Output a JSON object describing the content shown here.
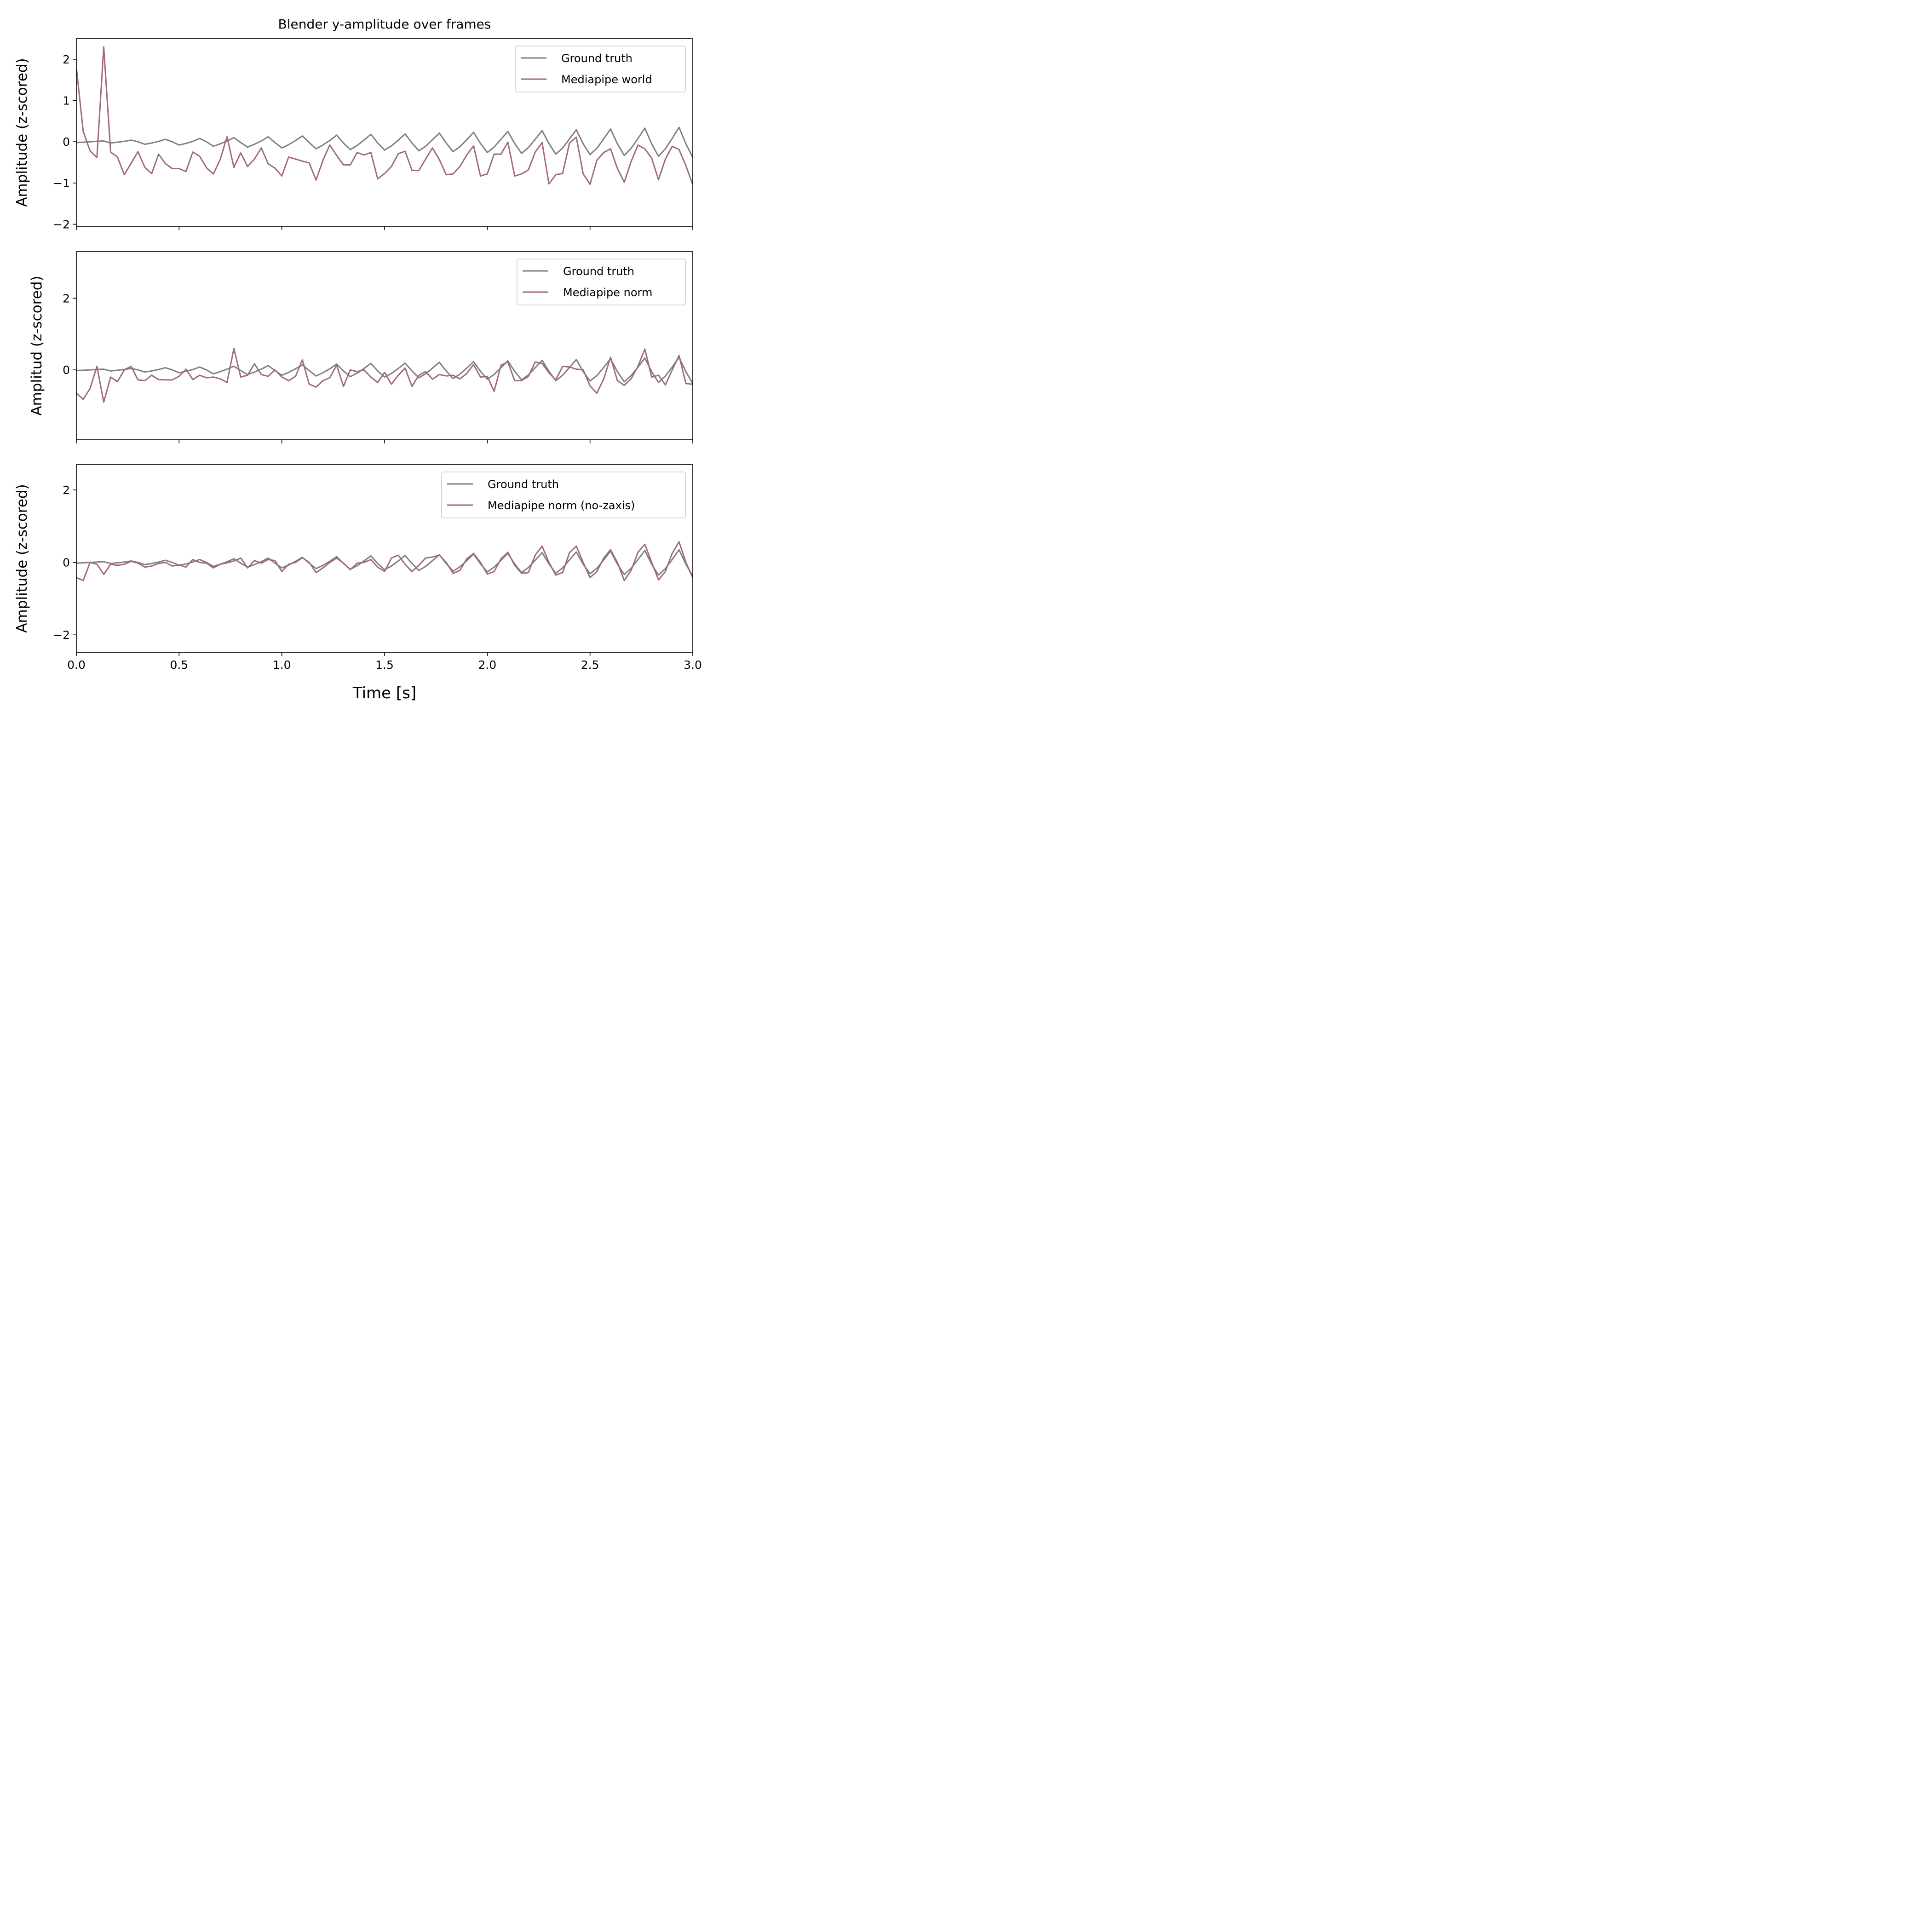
{
  "chart_data": [
    {
      "type": "line",
      "title": "Blender y-amplitude over frames",
      "xlabel": "",
      "ylabel": "Amplitude (z-scored)",
      "xlim": [
        0,
        3
      ],
      "ylim": [
        -2.05,
        2.5
      ],
      "yticks": [
        -2,
        -1,
        0,
        1,
        2
      ],
      "ytick_labels": [
        "−2",
        "−1",
        "0",
        "1",
        "2"
      ],
      "xticks": [
        0,
        0.5,
        1.0,
        1.5,
        2.0,
        2.5,
        3.0
      ],
      "xtick_labels": [],
      "legend_position": "top-right",
      "x": [
        0.0,
        0.0333,
        0.0667,
        0.1,
        0.1333,
        0.1667,
        0.2,
        0.2333,
        0.2667,
        0.3,
        0.3333,
        0.3667,
        0.4,
        0.4333,
        0.4667,
        0.5,
        0.5333,
        0.5667,
        0.6,
        0.6333,
        0.6667,
        0.7,
        0.7333,
        0.7667,
        0.8,
        0.8333,
        0.8667,
        0.9,
        0.9333,
        0.9667,
        1.0,
        1.0333,
        1.0667,
        1.1,
        1.1333,
        1.1667,
        1.2,
        1.2333,
        1.2667,
        1.3,
        1.3333,
        1.3667,
        1.4,
        1.4333,
        1.4667,
        1.5,
        1.5333,
        1.5667,
        1.6,
        1.6333,
        1.6667,
        1.7,
        1.7333,
        1.7667,
        1.8,
        1.8333,
        1.8667,
        1.9,
        1.9333,
        1.9667,
        2.0,
        2.0333,
        2.0667,
        2.1,
        2.1333,
        2.1667,
        2.2,
        2.2333,
        2.2667,
        2.3,
        2.3333,
        2.3667,
        2.4,
        2.4333,
        2.4667,
        2.5,
        2.5333,
        2.5667,
        2.6,
        2.6333,
        2.6667,
        2.7,
        2.7333,
        2.7667,
        2.8,
        2.8333,
        2.8667,
        2.9,
        2.9333,
        2.9667,
        3.0
      ],
      "series": [
        {
          "name": "Ground truth",
          "color": "#808080",
          "values": [
            -0.02,
            -0.01,
            0.0,
            0.01,
            0.02,
            -0.03,
            -0.01,
            0.01,
            0.04,
            0.0,
            -0.06,
            -0.03,
            0.01,
            0.06,
            0.0,
            -0.08,
            -0.04,
            0.01,
            0.08,
            0.0,
            -0.11,
            -0.05,
            0.02,
            0.1,
            -0.02,
            -0.13,
            -0.06,
            0.02,
            0.12,
            -0.02,
            -0.15,
            -0.07,
            0.03,
            0.14,
            -0.02,
            -0.17,
            -0.08,
            0.03,
            0.16,
            -0.03,
            -0.19,
            -0.09,
            0.04,
            0.18,
            -0.03,
            -0.2,
            -0.1,
            0.04,
            0.19,
            -0.03,
            -0.22,
            -0.11,
            0.05,
            0.21,
            -0.03,
            -0.24,
            -0.12,
            0.05,
            0.23,
            -0.04,
            -0.26,
            -0.13,
            0.06,
            0.25,
            -0.04,
            -0.28,
            -0.14,
            0.06,
            0.27,
            -0.04,
            -0.3,
            -0.15,
            0.07,
            0.29,
            -0.05,
            -0.31,
            -0.16,
            0.07,
            0.31,
            -0.05,
            -0.33,
            -0.16,
            0.08,
            0.33,
            -0.05,
            -0.35,
            -0.17,
            0.08,
            0.35,
            -0.05,
            -0.38
          ]
        },
        {
          "name": "Mediapipe world",
          "color": "#a06a80",
          "values": [
            1.8,
            0.25,
            -0.22,
            -0.38,
            2.3,
            -0.25,
            -0.37,
            -0.8,
            -0.52,
            -0.24,
            -0.62,
            -0.77,
            -0.3,
            -0.53,
            -0.65,
            -0.65,
            -0.72,
            -0.25,
            -0.35,
            -0.63,
            -0.78,
            -0.43,
            0.12,
            -0.62,
            -0.27,
            -0.6,
            -0.42,
            -0.15,
            -0.53,
            -0.64,
            -0.83,
            -0.37,
            -0.42,
            -0.47,
            -0.51,
            -0.93,
            -0.45,
            -0.08,
            -0.33,
            -0.56,
            -0.56,
            -0.26,
            -0.32,
            -0.26,
            -0.9,
            -0.77,
            -0.6,
            -0.29,
            -0.23,
            -0.69,
            -0.7,
            -0.42,
            -0.15,
            -0.43,
            -0.8,
            -0.78,
            -0.6,
            -0.32,
            -0.1,
            -0.83,
            -0.78,
            -0.3,
            -0.3,
            -0.01,
            -0.83,
            -0.78,
            -0.68,
            -0.25,
            -0.02,
            -1.02,
            -0.8,
            -0.77,
            -0.03,
            0.11,
            -0.78,
            -1.03,
            -0.45,
            -0.26,
            -0.17,
            -0.65,
            -0.98,
            -0.48,
            -0.08,
            -0.17,
            -0.4,
            -0.92,
            -0.42,
            -0.11,
            -0.19,
            -0.58,
            -1.04
          ]
        }
      ]
    },
    {
      "type": "line",
      "title": "",
      "xlabel": "",
      "ylabel": "Amplitud (z-scored)",
      "xlim": [
        0,
        3
      ],
      "ylim": [
        -1.95,
        3.3
      ],
      "yticks": [
        0,
        2
      ],
      "ytick_labels": [
        "0",
        "2"
      ],
      "xticks": [
        0,
        0.5,
        1.0,
        1.5,
        2.0,
        2.5,
        3.0
      ],
      "xtick_labels": [],
      "legend_position": "top-right",
      "x": [
        0.0,
        0.0333,
        0.0667,
        0.1,
        0.1333,
        0.1667,
        0.2,
        0.2333,
        0.2667,
        0.3,
        0.3333,
        0.3667,
        0.4,
        0.4333,
        0.4667,
        0.5,
        0.5333,
        0.5667,
        0.6,
        0.6333,
        0.6667,
        0.7,
        0.7333,
        0.7667,
        0.8,
        0.8333,
        0.8667,
        0.9,
        0.9333,
        0.9667,
        1.0,
        1.0333,
        1.0667,
        1.1,
        1.1333,
        1.1667,
        1.2,
        1.2333,
        1.2667,
        1.3,
        1.3333,
        1.3667,
        1.4,
        1.4333,
        1.4667,
        1.5,
        1.5333,
        1.5667,
        1.6,
        1.6333,
        1.6667,
        1.7,
        1.7333,
        1.7667,
        1.8,
        1.8333,
        1.8667,
        1.9,
        1.9333,
        1.9667,
        2.0,
        2.0333,
        2.0667,
        2.1,
        2.1333,
        2.1667,
        2.2,
        2.2333,
        2.2667,
        2.3,
        2.3333,
        2.3667,
        2.4,
        2.4333,
        2.4667,
        2.5,
        2.5333,
        2.5667,
        2.6,
        2.6333,
        2.6667,
        2.7,
        2.7333,
        2.7667,
        2.8,
        2.8333,
        2.8667,
        2.9,
        2.9333,
        2.9667,
        3.0
      ],
      "series": [
        {
          "name": "Ground truth",
          "color": "#808080",
          "values": [
            -0.02,
            -0.01,
            0.0,
            0.01,
            0.02,
            -0.03,
            -0.01,
            0.01,
            0.04,
            0.0,
            -0.06,
            -0.03,
            0.01,
            0.06,
            0.0,
            -0.08,
            -0.04,
            0.01,
            0.08,
            0.0,
            -0.11,
            -0.05,
            0.02,
            0.1,
            -0.02,
            -0.13,
            -0.06,
            0.02,
            0.12,
            -0.02,
            -0.15,
            -0.07,
            0.03,
            0.14,
            -0.02,
            -0.17,
            -0.08,
            0.03,
            0.16,
            -0.03,
            -0.19,
            -0.09,
            0.04,
            0.18,
            -0.03,
            -0.2,
            -0.1,
            0.04,
            0.19,
            -0.03,
            -0.22,
            -0.11,
            0.05,
            0.21,
            -0.03,
            -0.24,
            -0.12,
            0.05,
            0.23,
            -0.04,
            -0.26,
            -0.13,
            0.06,
            0.25,
            -0.04,
            -0.28,
            -0.14,
            0.06,
            0.27,
            -0.04,
            -0.3,
            -0.15,
            0.07,
            0.29,
            -0.05,
            -0.31,
            -0.16,
            0.07,
            0.31,
            -0.05,
            -0.33,
            -0.16,
            0.08,
            0.33,
            -0.05,
            -0.35,
            -0.17,
            0.08,
            0.35,
            -0.05,
            -0.38
          ]
        },
        {
          "name": "Mediapipe norm",
          "color": "#a06a80",
          "values": [
            -0.65,
            -0.82,
            -0.52,
            0.1,
            -0.9,
            -0.2,
            -0.33,
            0.0,
            0.1,
            -0.28,
            -0.3,
            -0.15,
            -0.27,
            -0.28,
            -0.28,
            -0.18,
            0.02,
            -0.27,
            -0.15,
            -0.22,
            -0.2,
            -0.25,
            -0.35,
            0.6,
            -0.2,
            -0.15,
            0.17,
            -0.13,
            -0.18,
            0.0,
            -0.2,
            -0.3,
            -0.18,
            0.28,
            -0.4,
            -0.48,
            -0.3,
            -0.22,
            0.13,
            -0.46,
            0.0,
            -0.05,
            0.0,
            -0.2,
            -0.35,
            -0.07,
            -0.4,
            -0.15,
            0.05,
            -0.46,
            -0.15,
            -0.05,
            -0.26,
            -0.13,
            -0.17,
            -0.15,
            -0.25,
            -0.1,
            0.15,
            -0.2,
            -0.18,
            -0.6,
            0.13,
            0.22,
            -0.3,
            -0.3,
            -0.18,
            0.22,
            0.18,
            -0.08,
            -0.28,
            0.1,
            0.08,
            0.02,
            0.0,
            -0.45,
            -0.65,
            -0.25,
            0.35,
            -0.3,
            -0.43,
            -0.25,
            0.1,
            0.58,
            -0.2,
            -0.15,
            -0.42,
            0.0,
            0.4,
            -0.38,
            -0.4
          ]
        }
      ]
    },
    {
      "type": "line",
      "title": "",
      "xlabel": "Time [s]",
      "ylabel": "Amplitude (z-scored)",
      "xlim": [
        0,
        3
      ],
      "ylim": [
        -2.48,
        2.7
      ],
      "yticks": [
        -2,
        0,
        2
      ],
      "ytick_labels": [
        "−2",
        "0",
        "2"
      ],
      "xticks": [
        0,
        0.5,
        1.0,
        1.5,
        2.0,
        2.5,
        3.0
      ],
      "xtick_labels": [
        "0.0",
        "0.5",
        "1.0",
        "1.5",
        "2.0",
        "2.5",
        "3.0"
      ],
      "legend_position": "top-right",
      "x": [
        0.0,
        0.0333,
        0.0667,
        0.1,
        0.1333,
        0.1667,
        0.2,
        0.2333,
        0.2667,
        0.3,
        0.3333,
        0.3667,
        0.4,
        0.4333,
        0.4667,
        0.5,
        0.5333,
        0.5667,
        0.6,
        0.6333,
        0.6667,
        0.7,
        0.7333,
        0.7667,
        0.8,
        0.8333,
        0.8667,
        0.9,
        0.9333,
        0.9667,
        1.0,
        1.0333,
        1.0667,
        1.1,
        1.1333,
        1.1667,
        1.2,
        1.2333,
        1.2667,
        1.3,
        1.3333,
        1.3667,
        1.4,
        1.4333,
        1.4667,
        1.5,
        1.5333,
        1.5667,
        1.6,
        1.6333,
        1.6667,
        1.7,
        1.7333,
        1.7667,
        1.8,
        1.8333,
        1.8667,
        1.9,
        1.9333,
        1.9667,
        2.0,
        2.0333,
        2.0667,
        2.1,
        2.1333,
        2.1667,
        2.2,
        2.2333,
        2.2667,
        2.3,
        2.3333,
        2.3667,
        2.4,
        2.4333,
        2.4667,
        2.5,
        2.5333,
        2.5667,
        2.6,
        2.6333,
        2.6667,
        2.7,
        2.7333,
        2.7667,
        2.8,
        2.8333,
        2.8667,
        2.9,
        2.9333,
        2.9667,
        3.0
      ],
      "series": [
        {
          "name": "Ground truth",
          "color": "#808080",
          "values": [
            -0.02,
            -0.01,
            0.0,
            0.01,
            0.02,
            -0.03,
            -0.01,
            0.01,
            0.04,
            0.0,
            -0.06,
            -0.03,
            0.01,
            0.06,
            0.0,
            -0.08,
            -0.04,
            0.01,
            0.08,
            0.0,
            -0.11,
            -0.05,
            0.02,
            0.1,
            -0.02,
            -0.13,
            -0.06,
            0.02,
            0.12,
            -0.02,
            -0.15,
            -0.07,
            0.03,
            0.14,
            -0.02,
            -0.17,
            -0.08,
            0.03,
            0.16,
            -0.03,
            -0.19,
            -0.09,
            0.04,
            0.18,
            -0.03,
            -0.2,
            -0.1,
            0.04,
            0.19,
            -0.03,
            -0.22,
            -0.11,
            0.05,
            0.21,
            -0.03,
            -0.24,
            -0.12,
            0.05,
            0.23,
            -0.04,
            -0.26,
            -0.13,
            0.06,
            0.25,
            -0.04,
            -0.28,
            -0.14,
            0.06,
            0.27,
            -0.04,
            -0.3,
            -0.15,
            0.07,
            0.29,
            -0.05,
            -0.31,
            -0.16,
            0.07,
            0.31,
            -0.05,
            -0.33,
            -0.16,
            0.08,
            0.33,
            -0.05,
            -0.35,
            -0.17,
            0.08,
            0.35,
            -0.05,
            -0.38
          ]
        },
        {
          "name": "Mediapipe norm (no-zaxis)",
          "color": "#a06a80",
          "values": [
            -0.42,
            -0.5,
            0.0,
            -0.05,
            -0.33,
            -0.05,
            -0.08,
            -0.05,
            0.03,
            -0.02,
            -0.13,
            -0.1,
            -0.03,
            0.0,
            -0.1,
            -0.07,
            -0.13,
            0.08,
            0.0,
            -0.02,
            -0.15,
            -0.05,
            -0.01,
            0.04,
            0.12,
            -0.15,
            0.05,
            -0.02,
            0.08,
            0.05,
            -0.25,
            -0.05,
            0.0,
            0.13,
            0.0,
            -0.28,
            -0.15,
            0.0,
            0.12,
            -0.02,
            -0.2,
            -0.02,
            0.0,
            0.08,
            -0.13,
            -0.25,
            0.12,
            0.2,
            -0.05,
            -0.25,
            -0.08,
            0.12,
            0.15,
            0.2,
            0.0,
            -0.3,
            -0.22,
            0.1,
            0.25,
            0.0,
            -0.32,
            -0.25,
            0.1,
            0.28,
            -0.08,
            -0.3,
            -0.28,
            0.2,
            0.45,
            0.0,
            -0.35,
            -0.28,
            0.27,
            0.45,
            0.0,
            -0.42,
            -0.25,
            0.12,
            0.35,
            0.0,
            -0.5,
            -0.22,
            0.28,
            0.5,
            0.0,
            -0.48,
            -0.25,
            0.25,
            0.57,
            0.0,
            -0.42
          ]
        }
      ]
    }
  ]
}
